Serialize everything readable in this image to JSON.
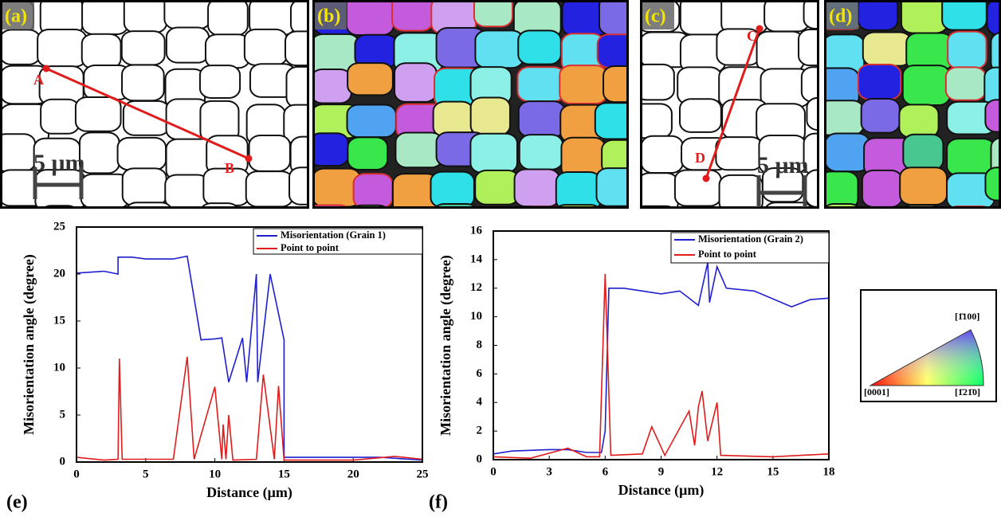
{
  "panels": [
    {
      "label": "(a)",
      "markers": [
        "A",
        "B"
      ],
      "scale_bar": "5 μm"
    },
    {
      "label": "(b)"
    },
    {
      "label": "(c)",
      "markers": [
        "C",
        "D"
      ],
      "scale_bar": "5 μm"
    },
    {
      "label": "(d)"
    }
  ],
  "ipf_key": {
    "top": "[1̄100]",
    "left": "[0001]",
    "right": "[1̄21̄0]"
  },
  "chart_data": [
    {
      "type": "line",
      "label": "(e)",
      "x_label": "Distance (μm)",
      "y_label": "Misorientation  angle (degree)",
      "xlim": [
        0,
        25
      ],
      "xticks": [
        0,
        5,
        10,
        15,
        20,
        25
      ],
      "ylim": [
        0,
        25
      ],
      "yticks": [
        0,
        5,
        10,
        15,
        20,
        25
      ],
      "legend": "top-right",
      "series": [
        {
          "name": "Misorientation (Grain 1)",
          "color": "#1f1fd0",
          "x": [
            0,
            2,
            3,
            3,
            4,
            5,
            7,
            8,
            9,
            10,
            10.5,
            11,
            12,
            12.3,
            13,
            13.1,
            14,
            15,
            15,
            20,
            22,
            25
          ],
          "values": [
            20.1,
            20.3,
            20,
            21.8,
            21.8,
            21.6,
            21.6,
            21.9,
            13,
            13.1,
            13.2,
            8.5,
            13.2,
            8.5,
            20,
            8.5,
            20,
            13,
            0.5,
            0.5,
            0.5,
            0.2
          ]
        },
        {
          "name": "Point to point",
          "color": "#e01c1c",
          "x": [
            0,
            2,
            3,
            3.1,
            3.3,
            7,
            8,
            8.5,
            10,
            10.5,
            10.6,
            10.8,
            11,
            11.3,
            13,
            13.5,
            14.3,
            14.6,
            15,
            20,
            23,
            25
          ],
          "values": [
            0.5,
            0.2,
            0.3,
            11,
            0.3,
            0.3,
            11.2,
            0.3,
            8,
            0.3,
            4,
            0.3,
            5,
            0.2,
            0.3,
            9.3,
            0.3,
            8.1,
            0.2,
            0.2,
            0.6,
            0.3
          ]
        }
      ]
    },
    {
      "type": "line",
      "label": "(f)",
      "x_label": "Distance (μm)",
      "y_label": "Misorientation  angle (degree)",
      "xlim": [
        0,
        18
      ],
      "xticks": [
        0,
        3,
        6,
        9,
        12,
        15,
        18
      ],
      "ylim": [
        0,
        16
      ],
      "yticks": [
        0,
        2,
        4,
        6,
        8,
        10,
        12,
        14,
        16
      ],
      "legend": "top-right",
      "series": [
        {
          "name": "Misorientation (Grain 2)",
          "color": "#1f1fd0",
          "x": [
            0,
            1,
            3,
            4,
            5,
            5.8,
            6,
            6.2,
            7,
            8,
            9,
            10,
            11,
            11.5,
            11.6,
            12,
            12.5,
            14,
            16,
            17,
            18
          ],
          "values": [
            0.4,
            0.6,
            0.7,
            0.7,
            0.5,
            0.5,
            2,
            12,
            12,
            11.8,
            11.6,
            11.8,
            10.8,
            13.8,
            11,
            13.5,
            12,
            11.8,
            10.7,
            11.2,
            11.3
          ]
        },
        {
          "name": "Point to point",
          "color": "#e01c1c",
          "x": [
            0,
            2,
            4,
            5,
            5.7,
            6,
            6.3,
            8,
            8.5,
            9.2,
            10.5,
            10.8,
            11,
            11.2,
            11.5,
            12,
            12.2,
            15,
            18
          ],
          "values": [
            0.2,
            0.1,
            0.8,
            0.2,
            0.2,
            13,
            0.3,
            0.4,
            2.3,
            0.3,
            3.4,
            1,
            3.7,
            4.8,
            1.3,
            4,
            0.3,
            0.2,
            0.4
          ]
        }
      ]
    }
  ]
}
